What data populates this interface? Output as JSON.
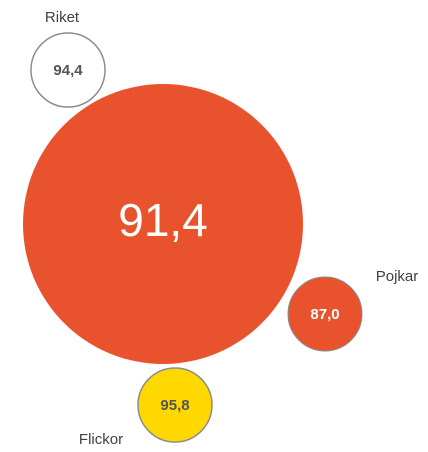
{
  "nodes": [
    {
      "label": null,
      "value": "91,4"
    },
    {
      "label": "Riket",
      "value": "94,4"
    },
    {
      "label": "Pojkar",
      "value": "87,0"
    },
    {
      "label": "Flickor",
      "value": "95,8"
    }
  ]
}
